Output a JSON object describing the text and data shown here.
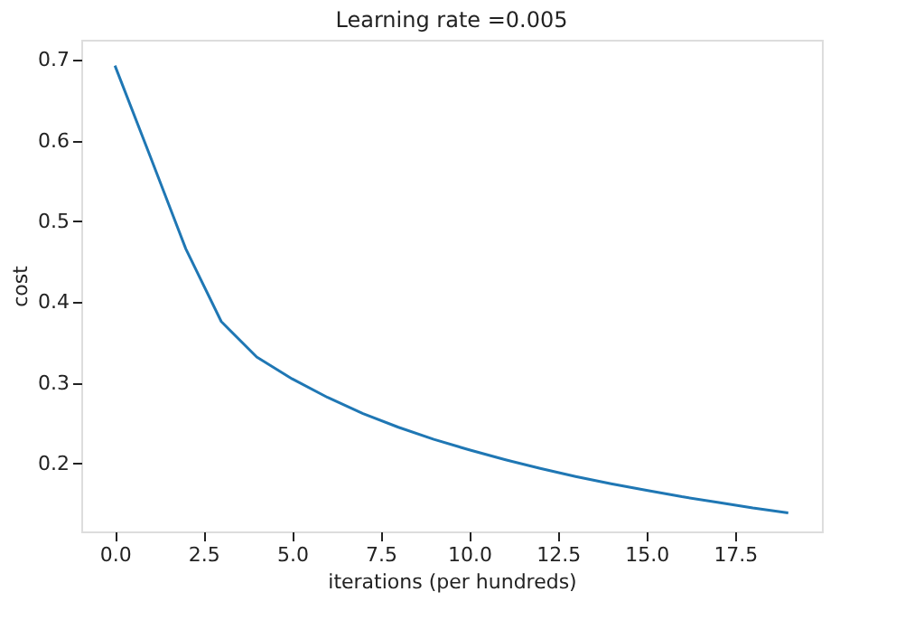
{
  "chart_data": {
    "type": "line",
    "title": "Learning rate =0.005",
    "xlabel": "iterations (per hundreds)",
    "ylabel": "cost",
    "x": [
      0,
      1,
      2,
      3,
      4,
      5,
      6,
      7,
      8,
      9,
      10,
      11,
      12,
      13,
      14,
      15,
      16,
      17,
      18,
      19
    ],
    "series": [
      {
        "color": "#1f77b4",
        "values": [
          0.693,
          0.58,
          0.466,
          0.376,
          0.332,
          0.305,
          0.282,
          0.262,
          0.245,
          0.23,
          0.217,
          0.205,
          0.194,
          0.184,
          0.175,
          0.167,
          0.159,
          0.152,
          0.145,
          0.139
        ]
      }
    ],
    "xlim": [
      -0.95,
      19.95
    ],
    "ylim": [
      0.116,
      0.725
    ],
    "xticks": [
      {
        "value": 0,
        "label": "0.0"
      },
      {
        "value": 2.5,
        "label": "2.5"
      },
      {
        "value": 5,
        "label": "5.0"
      },
      {
        "value": 7.5,
        "label": "7.5"
      },
      {
        "value": 10,
        "label": "10.0"
      },
      {
        "value": 12.5,
        "label": "12.5"
      },
      {
        "value": 15,
        "label": "15.0"
      },
      {
        "value": 17.5,
        "label": "17.5"
      }
    ],
    "yticks": [
      0.2,
      0.3,
      0.4,
      0.5,
      0.6,
      0.7
    ],
    "grid": false,
    "legend": false,
    "marker": "none",
    "line_style": "solid"
  }
}
